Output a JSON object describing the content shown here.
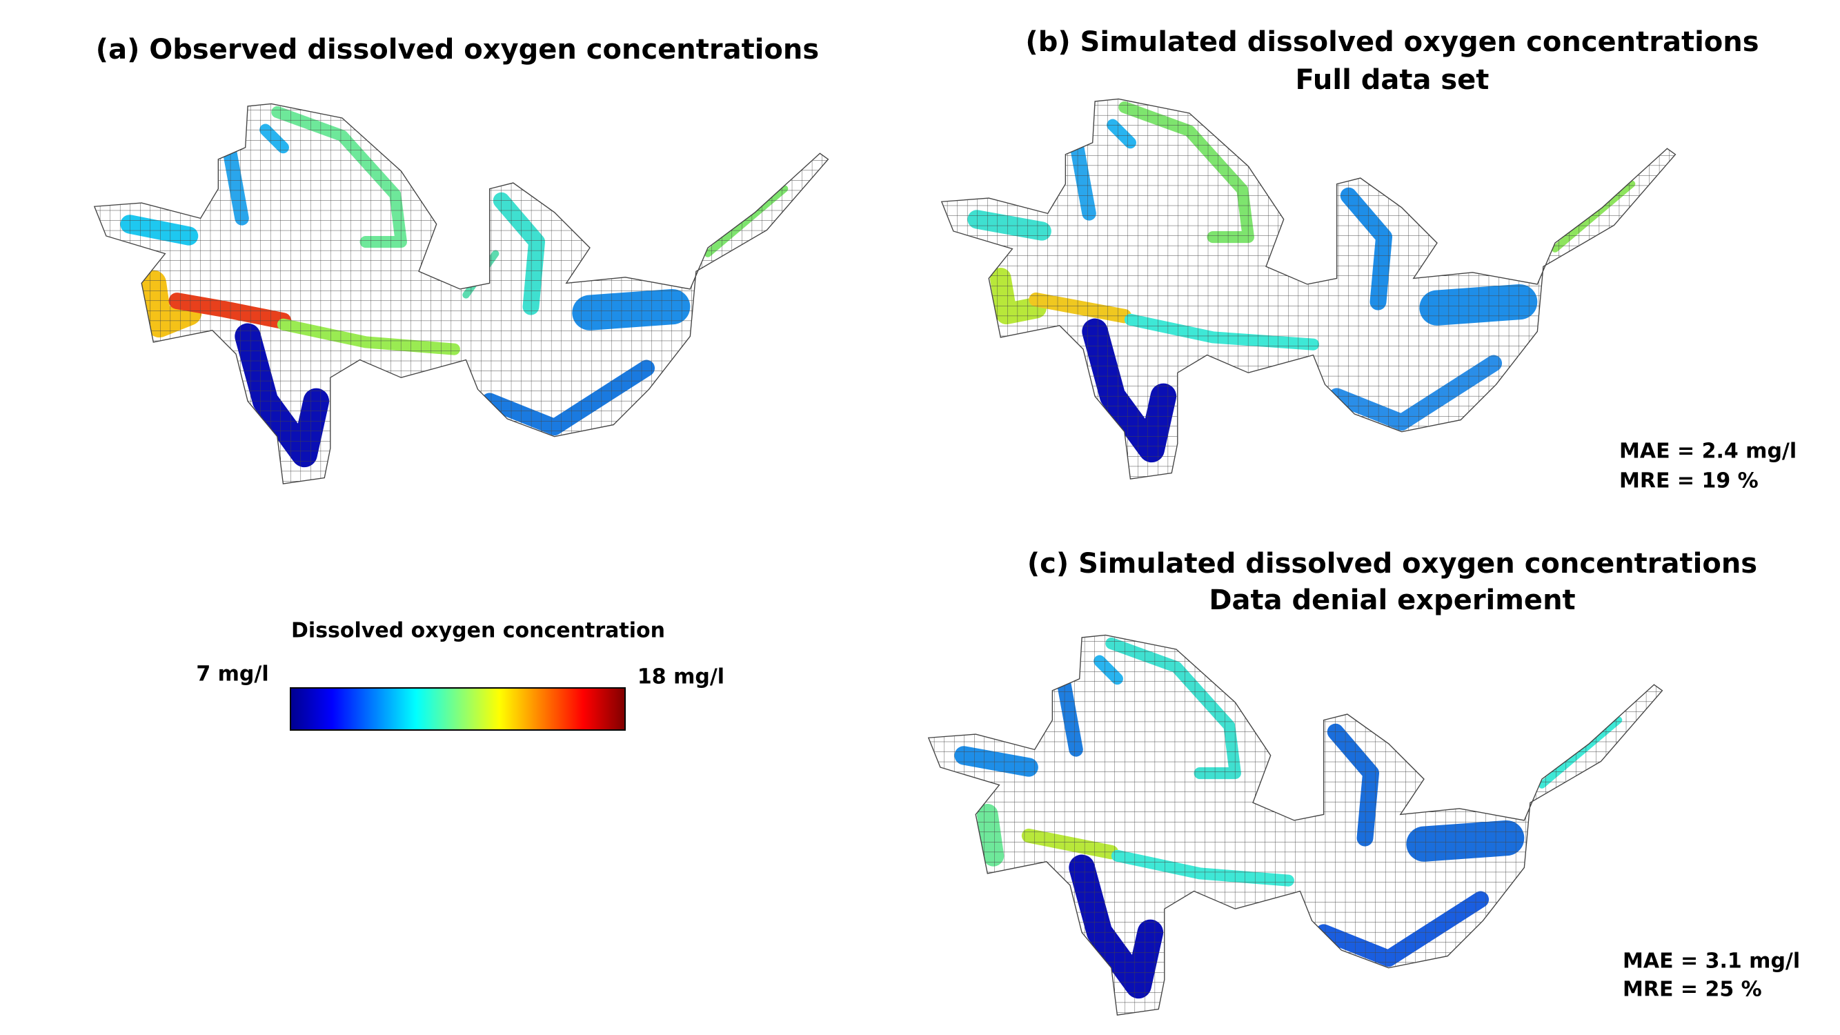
{
  "panels": [
    {
      "title": "(a) Observed dissolved oxygen concentrations"
    },
    {
      "title": "(b) Simulated dissolved oxygen concentrations",
      "subtitle": "Full data set",
      "metrics": [
        "MAE = 2.4 mg/l",
        "MRE = 19 %"
      ]
    },
    {
      "title": "(c) Simulated dissolved oxygen concentrations",
      "subtitle": "Data denial experiment",
      "metrics": [
        "MAE = 3.1 mg/l",
        "MRE = 25 %"
      ]
    }
  ],
  "legend": {
    "title": "Dissolved oxygen concentration",
    "min_label": "7 mg/l",
    "max_label": "18 mg/l"
  }
}
